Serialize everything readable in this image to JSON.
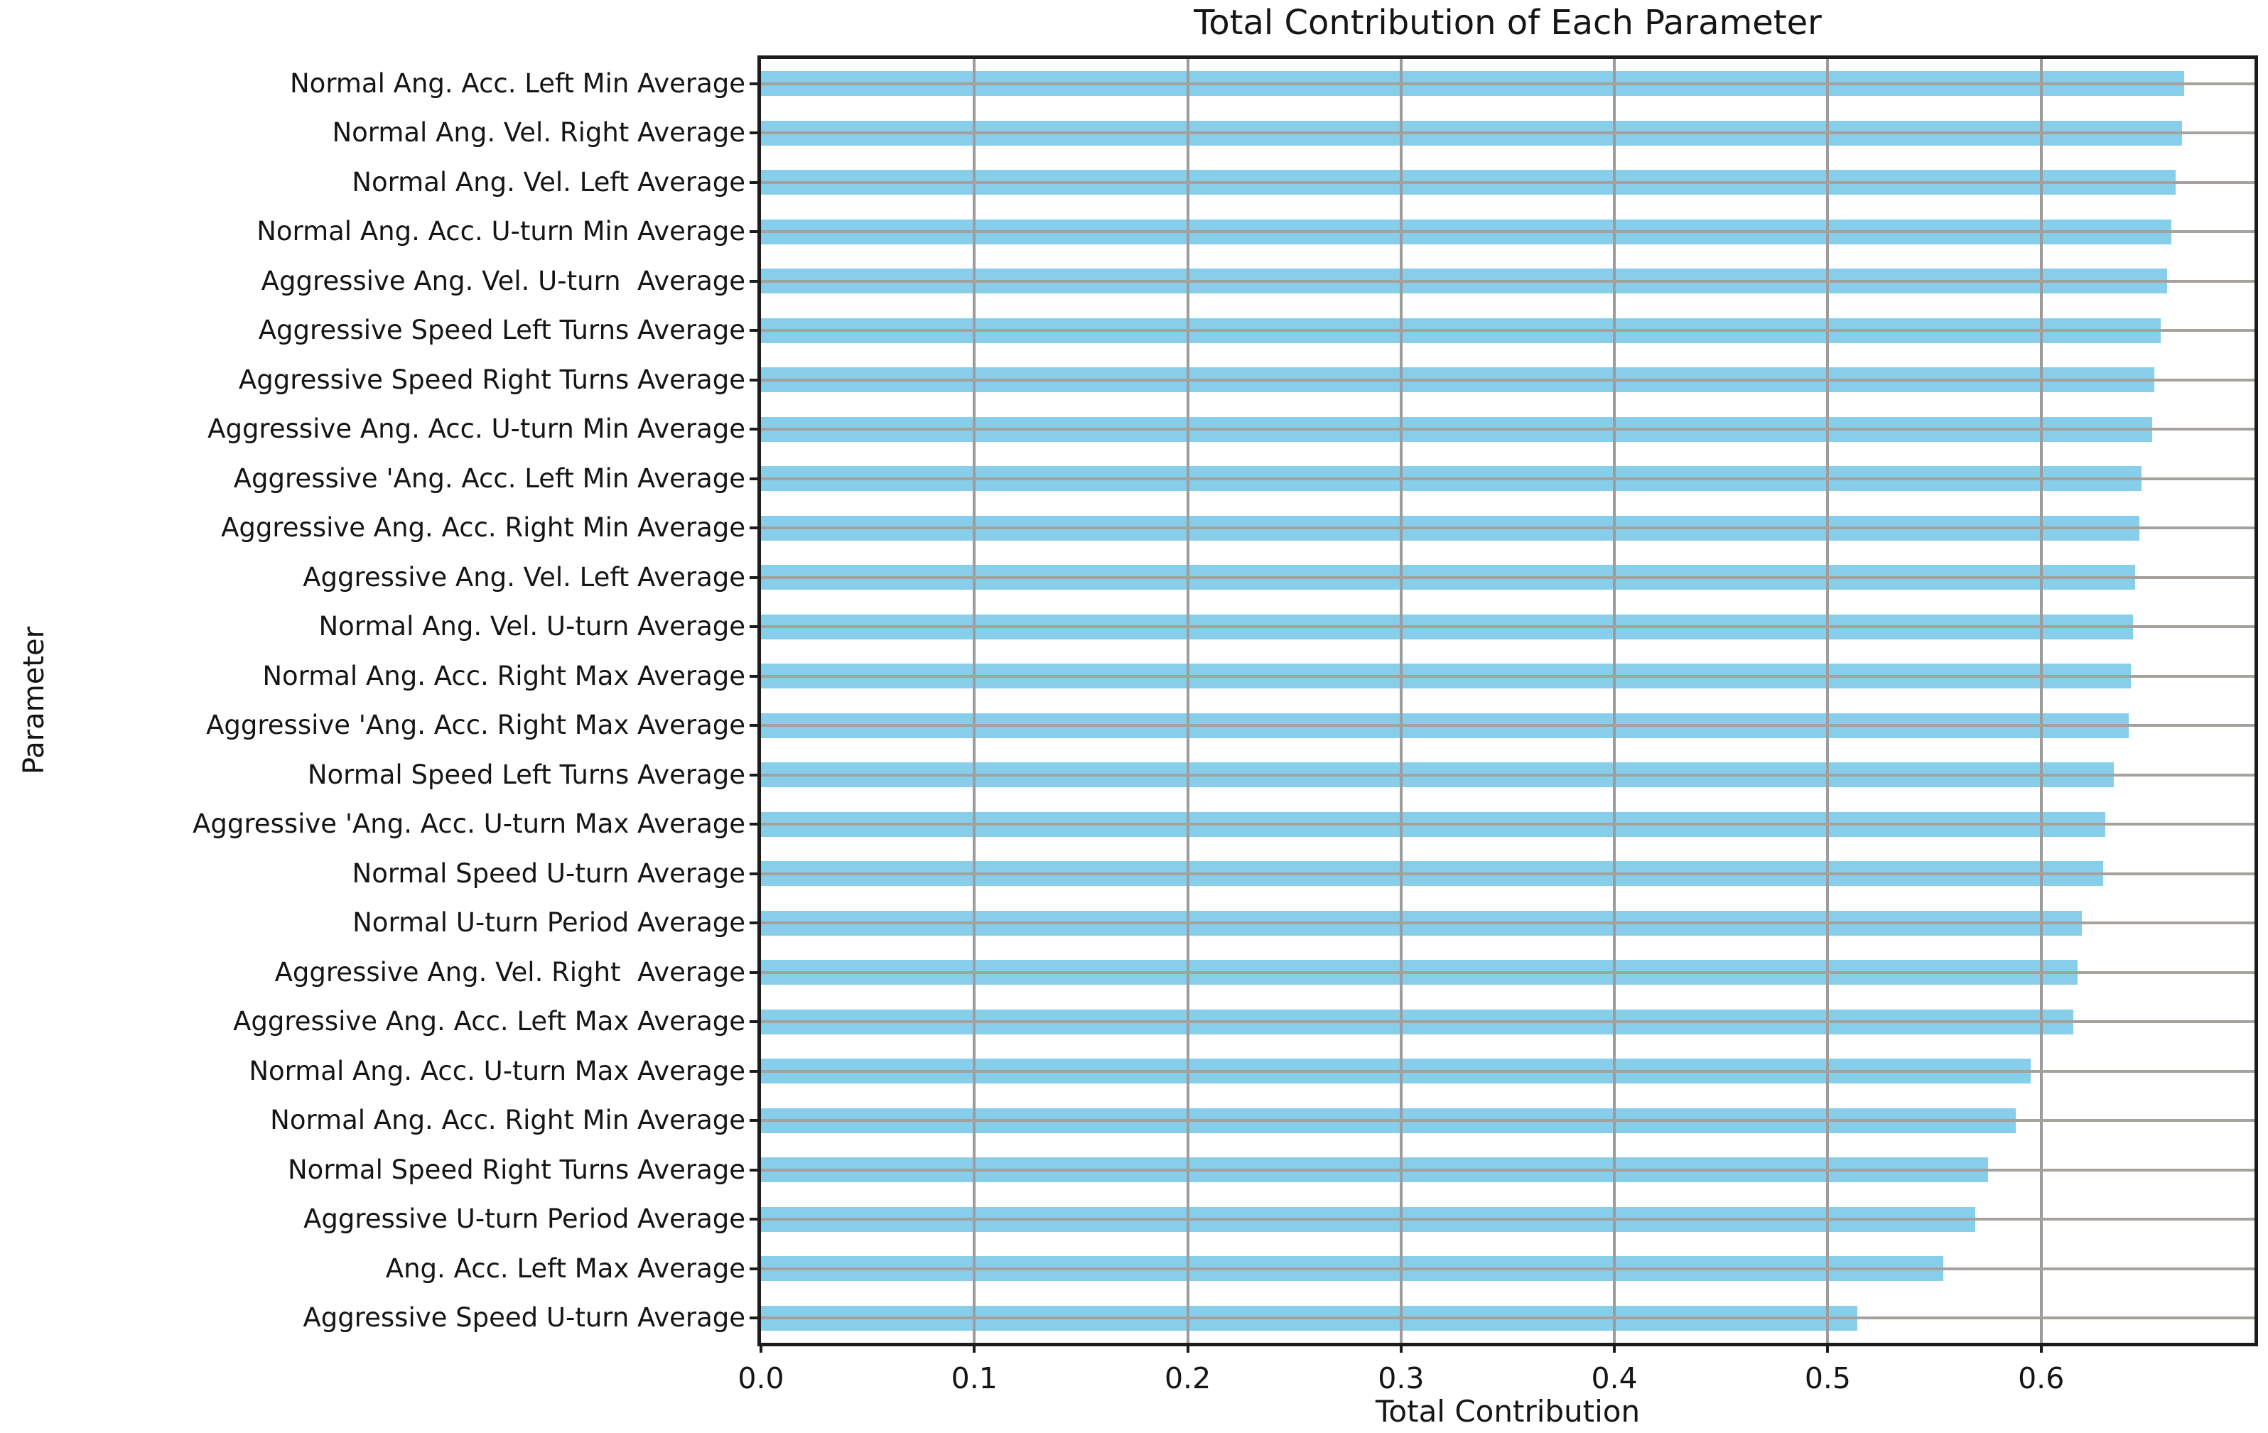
{
  "figure": {
    "background": "#ffffff"
  },
  "chart_data": {
    "type": "bar",
    "orientation": "horizontal",
    "title": "Total Contribution of Each Parameter",
    "xlabel": "Total Contribution",
    "ylabel": "Parameter",
    "xlim": [
      0,
      0.7
    ],
    "x_tick_values": [
      0.0,
      0.1,
      0.2,
      0.3,
      0.4,
      0.5,
      0.6
    ],
    "x_tick_labels": [
      "0.0",
      "0.1",
      "0.2",
      "0.3",
      "0.4",
      "0.5",
      "0.6"
    ],
    "grid": "both",
    "grid_on_top_of_bars": true,
    "legend": "none",
    "bar_color": "#87CEEB",
    "grid_color": "#a0a0a0",
    "spine_color": "#1c1c1c",
    "text_color": "#151515",
    "categories": [
      "Normal Ang. Acc. Left Min Average",
      "Normal Ang. Vel. Right Average",
      "Normal Ang. Vel. Left Average",
      "Normal Ang. Acc. U-turn Min Average",
      "Aggressive Ang. Vel. U-turn  Average",
      "Aggressive Speed Left Turns Average",
      "Aggressive Speed Right Turns Average",
      "Aggressive Ang. Acc. U-turn Min Average",
      "Aggressive 'Ang. Acc. Left Min Average",
      "Aggressive Ang. Acc. Right Min Average",
      "Aggressive Ang. Vel. Left Average",
      "Normal Ang. Vel. U-turn Average",
      "Normal Ang. Acc. Right Max Average",
      "Aggressive 'Ang. Acc. Right Max Average",
      "Normal Speed Left Turns Average",
      "Aggressive 'Ang. Acc. U-turn Max Average",
      "Normal Speed U-turn Average",
      "Normal U-turn Period Average",
      "Aggressive Ang. Vel. Right  Average",
      "Aggressive Ang. Acc. Left Max Average",
      "Normal Ang. Acc. U-turn Max Average",
      "Normal Ang. Acc. Right Min Average",
      "Normal Speed Right Turns Average",
      "Aggressive U-turn Period Average",
      "Ang. Acc. Left Max Average",
      "Aggressive Speed U-turn Average"
    ],
    "values": [
      0.667,
      0.666,
      0.663,
      0.661,
      0.659,
      0.656,
      0.653,
      0.652,
      0.647,
      0.646,
      0.644,
      0.643,
      0.642,
      0.641,
      0.634,
      0.63,
      0.629,
      0.619,
      0.617,
      0.615,
      0.595,
      0.588,
      0.575,
      0.569,
      0.554,
      0.514
    ]
  }
}
